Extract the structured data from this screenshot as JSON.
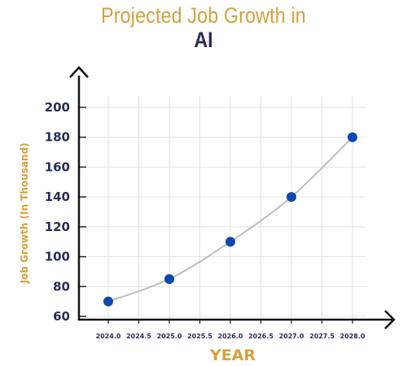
{
  "title_line1": "Projected Job Growth in",
  "title_line2": "AI",
  "colors": {
    "title_accent": "#d4a23f",
    "title_dark": "#2a2d55",
    "marker": "#0d47b0",
    "line": "#bdbdbd",
    "grid": "#e3e3e3"
  },
  "chart_data": {
    "type": "line",
    "title": "Projected Job Growth in AI",
    "xlabel": "YEAR",
    "ylabel": "Job Growth (In Thousand)",
    "x": [
      2024.0,
      2025.0,
      2026.0,
      2027.0,
      2028.0
    ],
    "y": [
      70,
      85,
      110,
      140,
      180
    ],
    "x_ticks": [
      "2024.0",
      "2024.5",
      "2025.0",
      "2025.5",
      "2026.0",
      "2026.5",
      "2027.0",
      "2027.5",
      "2028.0"
    ],
    "y_ticks": [
      "60",
      "80",
      "100",
      "120",
      "140",
      "160",
      "180",
      "200"
    ],
    "xlim": [
      2023.55,
      2028.6
    ],
    "ylim": [
      60,
      200
    ],
    "grid": true,
    "legend": "none",
    "interpolation": "smooth"
  }
}
